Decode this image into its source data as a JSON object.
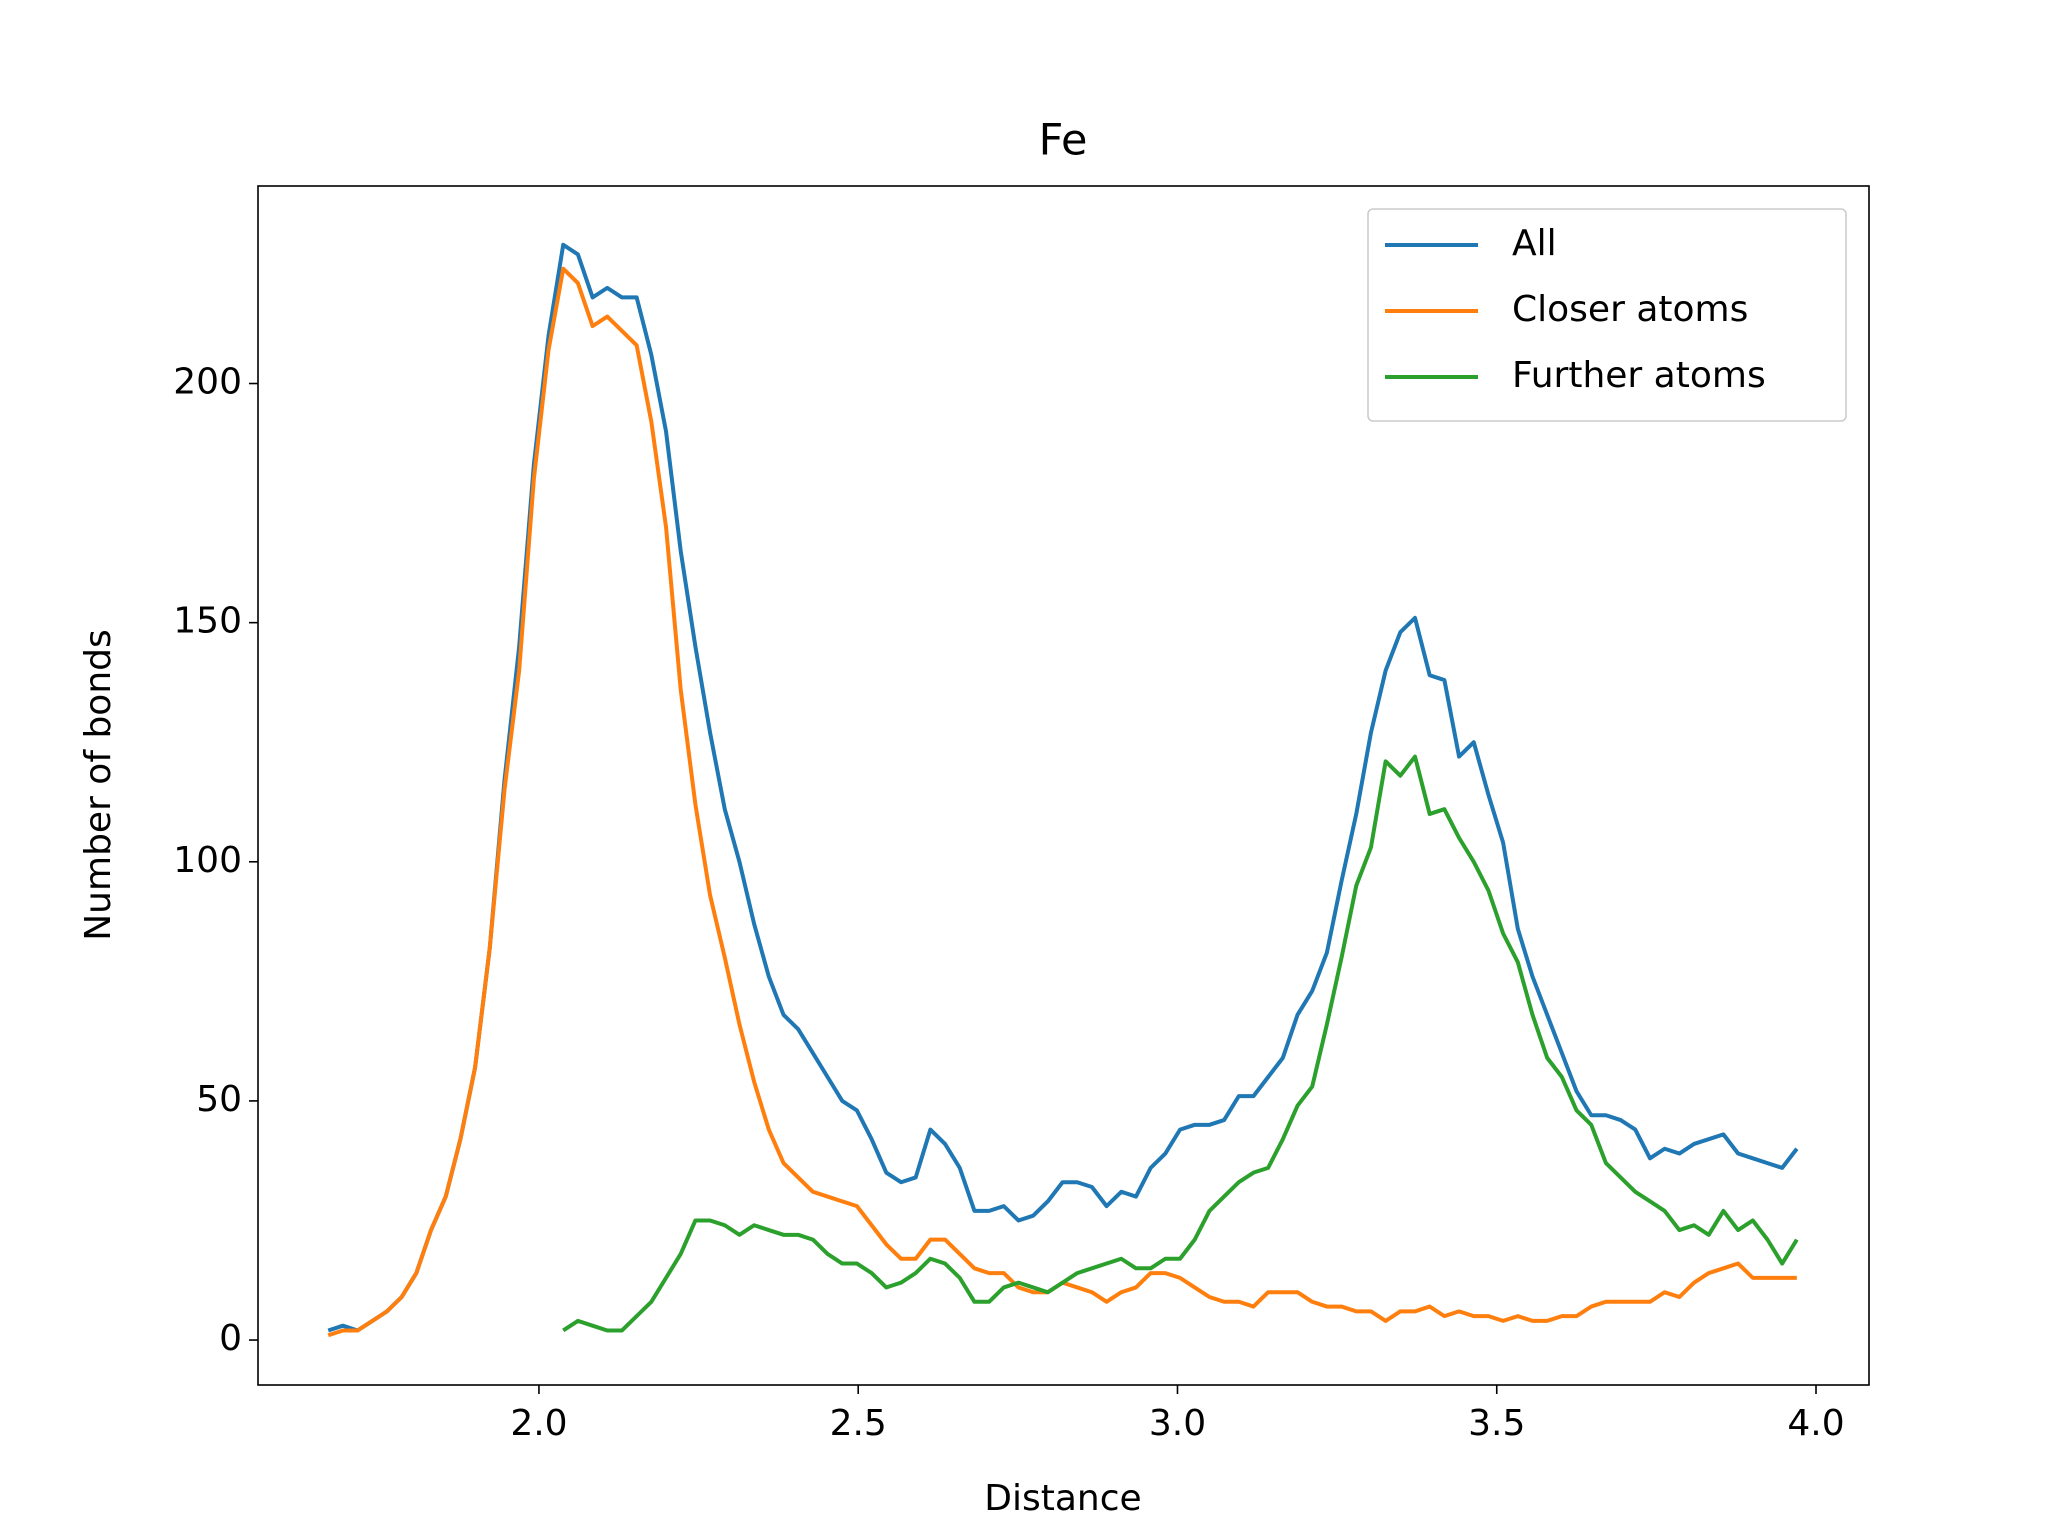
{
  "chart_data": {
    "type": "line",
    "title": "Fe",
    "xlabel": "Distance",
    "ylabel": "Number of bonds",
    "x": [
      1.67,
      1.693,
      1.716,
      1.739,
      1.762,
      1.785,
      1.808,
      1.831,
      1.854,
      1.877,
      1.9,
      1.923,
      1.946,
      1.969,
      1.992,
      2.015,
      2.038,
      2.061,
      2.084,
      2.107,
      2.13,
      2.153,
      2.176,
      2.199,
      2.222,
      2.245,
      2.268,
      2.291,
      2.314,
      2.337,
      2.36,
      2.383,
      2.406,
      2.429,
      2.452,
      2.475,
      2.498,
      2.521,
      2.544,
      2.567,
      2.59,
      2.613,
      2.636,
      2.659,
      2.682,
      2.705,
      2.728,
      2.751,
      2.774,
      2.797,
      2.82,
      2.843,
      2.866,
      2.889,
      2.912,
      2.935,
      2.958,
      2.981,
      3.004,
      3.027,
      3.05,
      3.073,
      3.096,
      3.119,
      3.142,
      3.165,
      3.188,
      3.211,
      3.234,
      3.257,
      3.28,
      3.303,
      3.326,
      3.349,
      3.372,
      3.395,
      3.418,
      3.441,
      3.464,
      3.487,
      3.51,
      3.533,
      3.556,
      3.579,
      3.602,
      3.625,
      3.648,
      3.671,
      3.694,
      3.717,
      3.74,
      3.763,
      3.786,
      3.809,
      3.832,
      3.855,
      3.878,
      3.901,
      3.924,
      3.947,
      3.97
    ],
    "series": [
      {
        "name": "All",
        "color": "#1f77b4",
        "values": [
          2,
          3,
          2,
          4,
          6,
          9,
          14,
          23,
          30,
          42,
          57,
          82,
          117,
          145,
          183,
          210,
          229,
          227,
          218,
          220,
          218,
          218,
          206,
          190,
          165,
          145,
          127,
          111,
          100,
          87,
          76,
          68,
          65,
          60,
          55,
          50,
          48,
          42,
          35,
          33,
          34,
          44,
          41,
          36,
          27,
          27,
          28,
          25,
          26,
          29,
          33,
          33,
          32,
          28,
          31,
          30,
          36,
          39,
          44,
          45,
          45,
          46,
          51,
          51,
          55,
          59,
          68,
          73,
          81,
          96,
          110,
          127,
          140,
          148,
          151,
          139,
          138,
          122,
          125,
          114,
          104,
          86,
          76,
          68,
          60,
          52,
          47,
          47,
          46,
          44,
          38,
          40,
          39,
          41,
          42,
          43,
          39,
          38,
          37,
          36,
          40
        ]
      },
      {
        "name": "Closer atoms",
        "color": "#ff7f0e",
        "values": [
          1,
          2,
          2,
          4,
          6,
          9,
          14,
          23,
          30,
          42,
          57,
          82,
          115,
          140,
          180,
          207,
          224,
          221,
          212,
          214,
          211,
          208,
          192,
          170,
          136,
          112,
          93,
          80,
          66,
          54,
          44,
          37,
          34,
          31,
          30,
          29,
          28,
          24,
          20,
          17,
          17,
          21,
          21,
          18,
          15,
          14,
          14,
          11,
          10,
          10,
          12,
          11,
          10,
          8,
          10,
          11,
          14,
          14,
          13,
          11,
          9,
          8,
          8,
          7,
          10,
          10,
          10,
          8,
          7,
          7,
          6,
          6,
          4,
          6,
          6,
          7,
          5,
          6,
          5,
          5,
          4,
          5,
          4,
          4,
          5,
          5,
          7,
          8,
          8,
          8,
          8,
          10,
          9,
          12,
          14,
          15,
          16,
          13,
          13,
          13,
          13
        ]
      },
      {
        "name": "Further atoms",
        "color": "#2ca02c",
        "values": [
          null,
          null,
          null,
          null,
          null,
          null,
          null,
          null,
          null,
          null,
          null,
          null,
          null,
          null,
          null,
          null,
          2,
          4,
          3,
          2,
          2,
          5,
          8,
          13,
          18,
          25,
          25,
          24,
          22,
          24,
          23,
          22,
          22,
          21,
          18,
          16,
          16,
          14,
          11,
          12,
          14,
          17,
          16,
          13,
          8,
          8,
          11,
          12,
          11,
          10,
          12,
          14,
          15,
          16,
          17,
          15,
          15,
          17,
          17,
          21,
          27,
          30,
          33,
          35,
          36,
          42,
          49,
          53,
          66,
          80,
          95,
          103,
          121,
          118,
          122,
          110,
          111,
          105,
          100,
          94,
          85,
          79,
          68,
          59,
          55,
          48,
          45,
          37,
          34,
          31,
          29,
          27,
          23,
          24,
          22,
          27,
          23,
          25,
          21,
          16,
          21
        ]
      }
    ],
    "xlim": [
      1.56,
      4.083
    ],
    "ylim": [
      -9.4,
      241.3
    ],
    "xticks": [
      {
        "value": 2,
        "label": "2.0"
      },
      {
        "value": 2.5,
        "label": "2.5"
      },
      {
        "value": 3,
        "label": "3.0"
      },
      {
        "value": 3.5,
        "label": "3.5"
      },
      {
        "value": 4,
        "label": "4.0"
      }
    ],
    "yticks": [
      0,
      50,
      100,
      150,
      200
    ],
    "legend": "upper right",
    "grid": false
  }
}
